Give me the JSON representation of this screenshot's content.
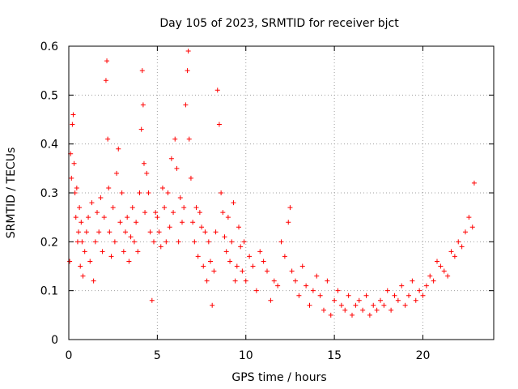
{
  "chart_data": {
    "type": "scatter",
    "title": "Day 105 of 2023, SRMTID for receiver bjct",
    "xlabel": "GPS time / hours",
    "ylabel": "SRMTID / TECUs",
    "xlim": [
      0,
      24
    ],
    "ylim": [
      0,
      0.6
    ],
    "x_ticks": [
      0,
      5,
      10,
      15,
      20
    ],
    "x_tick_labels": [
      "0",
      "5",
      "10",
      "15",
      "20"
    ],
    "y_ticks": [
      0,
      0.1,
      0.2,
      0.3,
      0.4,
      0.5,
      0.6
    ],
    "y_tick_labels": [
      "0",
      "0.1",
      "0.2",
      "0.3",
      "0.4",
      "0.5",
      "0.6"
    ],
    "grid": true,
    "marker": "plus",
    "color": "#ff0000",
    "series": [
      {
        "name": "SRMTID",
        "x": [
          0.05,
          0.1,
          0.15,
          0.2,
          0.25,
          0.3,
          0.35,
          0.4,
          0.45,
          0.5,
          0.55,
          0.6,
          0.65,
          0.7,
          0.75,
          0.8,
          0.9,
          1.0,
          1.1,
          1.2,
          1.3,
          1.4,
          1.5,
          1.6,
          1.7,
          1.8,
          1.9,
          2.0,
          2.1,
          2.15,
          2.2,
          2.25,
          2.3,
          2.4,
          2.5,
          2.6,
          2.7,
          2.8,
          2.9,
          3.0,
          3.1,
          3.2,
          3.3,
          3.4,
          3.5,
          3.6,
          3.7,
          3.8,
          3.9,
          4.0,
          4.1,
          4.15,
          4.2,
          4.25,
          4.3,
          4.4,
          4.5,
          4.6,
          4.7,
          4.8,
          4.9,
          5.0,
          5.1,
          5.2,
          5.3,
          5.4,
          5.5,
          5.6,
          5.7,
          5.8,
          5.9,
          6.0,
          6.1,
          6.2,
          6.3,
          6.4,
          6.5,
          6.6,
          6.7,
          6.75,
          6.8,
          6.9,
          7.0,
          7.1,
          7.2,
          7.3,
          7.4,
          7.5,
          7.6,
          7.7,
          7.8,
          7.9,
          8.0,
          8.1,
          8.2,
          8.3,
          8.4,
          8.5,
          8.6,
          8.7,
          8.8,
          8.9,
          9.0,
          9.1,
          9.2,
          9.3,
          9.4,
          9.5,
          9.6,
          9.7,
          9.8,
          9.9,
          10.0,
          10.2,
          10.4,
          10.6,
          10.8,
          11.0,
          11.2,
          11.4,
          11.6,
          11.8,
          12.0,
          12.2,
          12.4,
          12.5,
          12.6,
          12.8,
          13.0,
          13.2,
          13.4,
          13.6,
          13.8,
          14.0,
          14.2,
          14.4,
          14.6,
          14.8,
          15.0,
          15.2,
          15.4,
          15.6,
          15.8,
          16.0,
          16.2,
          16.4,
          16.6,
          16.8,
          17.0,
          17.2,
          17.4,
          17.6,
          17.8,
          18.0,
          18.2,
          18.4,
          18.6,
          18.8,
          19.0,
          19.2,
          19.4,
          19.6,
          19.8,
          20.0,
          20.2,
          20.4,
          20.6,
          20.8,
          21.0,
          21.2,
          21.4,
          21.6,
          21.8,
          22.0,
          22.2,
          22.4,
          22.6,
          22.8,
          22.9
        ],
        "y": [
          0.16,
          0.38,
          0.33,
          0.44,
          0.46,
          0.36,
          0.3,
          0.25,
          0.31,
          0.2,
          0.22,
          0.27,
          0.15,
          0.24,
          0.2,
          0.13,
          0.18,
          0.22,
          0.25,
          0.16,
          0.28,
          0.12,
          0.2,
          0.26,
          0.22,
          0.29,
          0.18,
          0.25,
          0.53,
          0.57,
          0.41,
          0.31,
          0.22,
          0.17,
          0.27,
          0.2,
          0.34,
          0.39,
          0.24,
          0.3,
          0.18,
          0.22,
          0.25,
          0.16,
          0.21,
          0.27,
          0.2,
          0.24,
          0.18,
          0.3,
          0.43,
          0.55,
          0.48,
          0.36,
          0.26,
          0.34,
          0.3,
          0.22,
          0.08,
          0.2,
          0.26,
          0.25,
          0.22,
          0.19,
          0.31,
          0.27,
          0.2,
          0.3,
          0.23,
          0.37,
          0.26,
          0.41,
          0.35,
          0.2,
          0.29,
          0.24,
          0.27,
          0.48,
          0.55,
          0.59,
          0.41,
          0.33,
          0.24,
          0.2,
          0.27,
          0.17,
          0.26,
          0.23,
          0.15,
          0.22,
          0.12,
          0.2,
          0.16,
          0.07,
          0.14,
          0.22,
          0.51,
          0.44,
          0.3,
          0.26,
          0.21,
          0.18,
          0.25,
          0.16,
          0.2,
          0.28,
          0.12,
          0.15,
          0.23,
          0.19,
          0.14,
          0.2,
          0.12,
          0.17,
          0.15,
          0.1,
          0.18,
          0.16,
          0.14,
          0.08,
          0.12,
          0.11,
          0.2,
          0.17,
          0.24,
          0.27,
          0.14,
          0.12,
          0.09,
          0.15,
          0.11,
          0.07,
          0.1,
          0.13,
          0.09,
          0.06,
          0.12,
          0.05,
          0.08,
          0.1,
          0.07,
          0.06,
          0.09,
          0.05,
          0.07,
          0.08,
          0.06,
          0.09,
          0.05,
          0.07,
          0.06,
          0.08,
          0.07,
          0.1,
          0.06,
          0.09,
          0.08,
          0.11,
          0.07,
          0.09,
          0.12,
          0.08,
          0.1,
          0.09,
          0.11,
          0.13,
          0.12,
          0.16,
          0.15,
          0.14,
          0.13,
          0.18,
          0.17,
          0.2,
          0.19,
          0.22,
          0.25,
          0.23,
          0.32
        ]
      }
    ]
  }
}
